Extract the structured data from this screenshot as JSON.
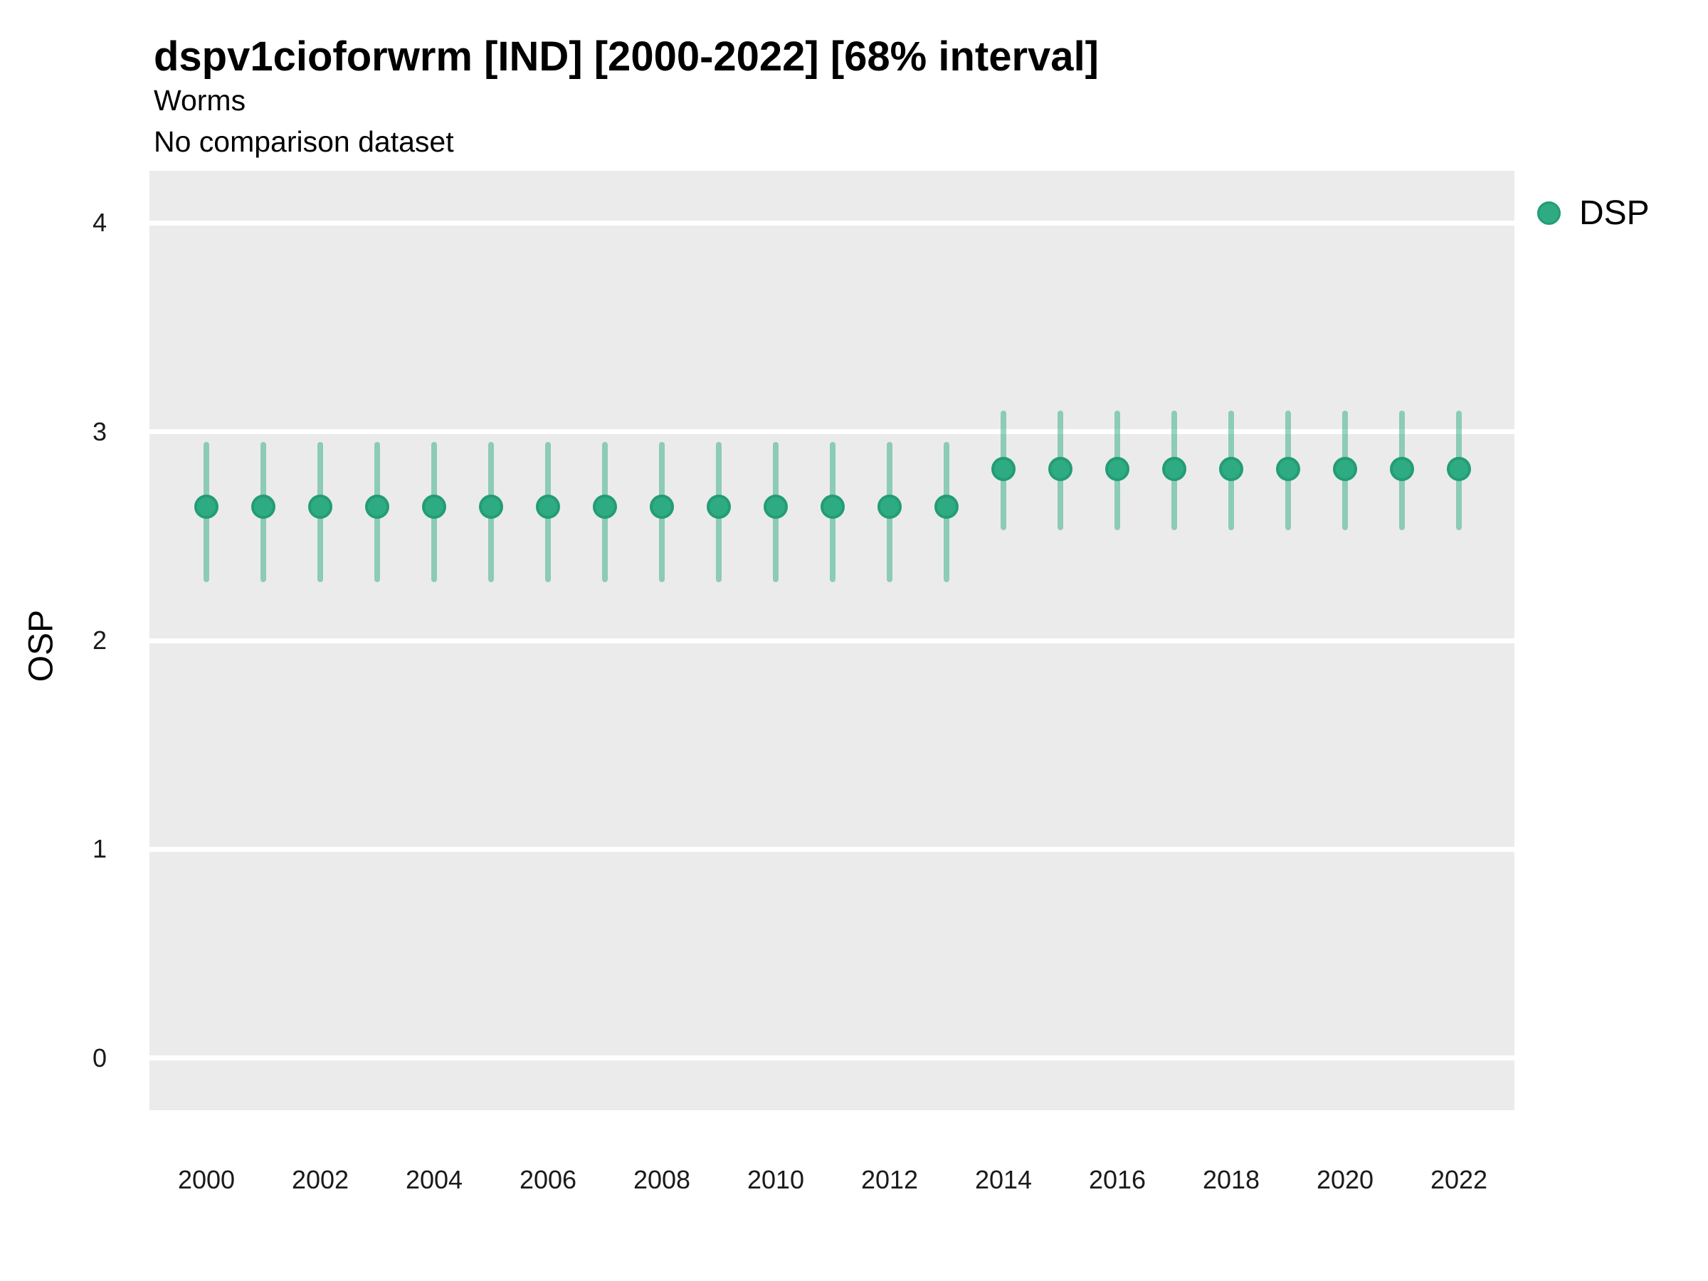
{
  "header": {
    "title": "dspv1cioforwrm [IND] [2000-2022] [68% interval]",
    "subtitle": "Worms",
    "comparison_note": "No comparison dataset"
  },
  "legend": {
    "label": "DSP"
  },
  "colors": {
    "panel_background": "#ebebeb",
    "gridline": "#ffffff",
    "point_fill": "#2fab84",
    "point_stroke": "#239d73",
    "interval_line": "rgba(46,171,130,0.5)",
    "tick_text": "#1a1a1a",
    "title_text": "#000000"
  },
  "chart_data": {
    "type": "scatter",
    "subtype": "point-interval",
    "title": "dspv1cioforwrm [IND] [2000-2022] [68% interval]",
    "xlabel": "",
    "ylabel": "OSP",
    "interval_level": "68%",
    "legend_position": "right",
    "grid": "horizontal-major-only",
    "ylim": [
      -0.25,
      4.25
    ],
    "yticks": [
      0,
      1,
      2,
      3,
      4
    ],
    "xticks": [
      2000,
      2002,
      2004,
      2006,
      2008,
      2010,
      2012,
      2014,
      2016,
      2018,
      2020,
      2022
    ],
    "x": [
      2000,
      2001,
      2002,
      2003,
      2004,
      2005,
      2006,
      2007,
      2008,
      2009,
      2010,
      2011,
      2012,
      2013,
      2014,
      2015,
      2016,
      2017,
      2018,
      2019,
      2020,
      2021,
      2022
    ],
    "series": [
      {
        "name": "DSP",
        "estimates": [
          2.64,
          2.64,
          2.64,
          2.64,
          2.64,
          2.64,
          2.64,
          2.64,
          2.64,
          2.64,
          2.64,
          2.64,
          2.64,
          2.64,
          2.82,
          2.82,
          2.82,
          2.82,
          2.82,
          2.82,
          2.82,
          2.82,
          2.82
        ],
        "lower": [
          2.28,
          2.28,
          2.28,
          2.28,
          2.28,
          2.28,
          2.28,
          2.28,
          2.28,
          2.28,
          2.28,
          2.28,
          2.28,
          2.28,
          2.53,
          2.53,
          2.53,
          2.53,
          2.53,
          2.53,
          2.53,
          2.53,
          2.53
        ],
        "upper": [
          2.95,
          2.95,
          2.95,
          2.95,
          2.95,
          2.95,
          2.95,
          2.95,
          2.95,
          2.95,
          2.95,
          2.95,
          2.95,
          2.95,
          3.1,
          3.1,
          3.1,
          3.1,
          3.1,
          3.1,
          3.1,
          3.1,
          3.1
        ]
      }
    ]
  }
}
